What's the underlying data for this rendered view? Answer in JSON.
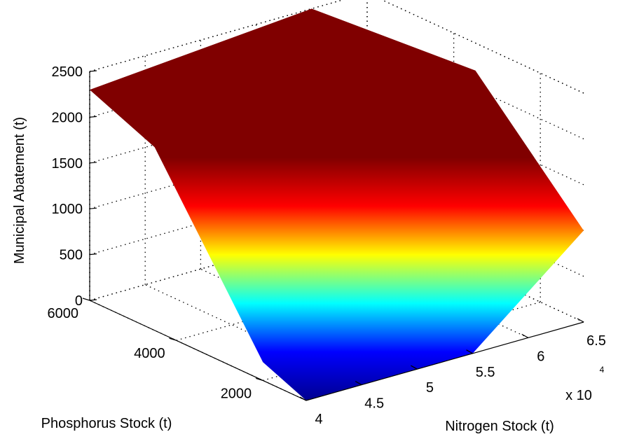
{
  "chart_data": {
    "type": "surface",
    "title": "",
    "xlabel": "Nitrogen Stock (t)",
    "ylabel": "Phosphorus Stock (t)",
    "zlabel": "Municipal Abatement (t)",
    "x_multiplier_label": "x 10",
    "x_multiplier_exponent": "4",
    "x_ticks": [
      "4",
      "4.5",
      "5",
      "5.5",
      "6",
      "6.5"
    ],
    "y_ticks": [
      "2000",
      "4000",
      "6000"
    ],
    "z_ticks": [
      "0",
      "500",
      "1000",
      "1500",
      "2000",
      "2500"
    ],
    "xlim": [
      40000,
      65000
    ],
    "ylim": [
      1000,
      6000
    ],
    "zlim": [
      0,
      2500
    ],
    "grid": true,
    "colormap": "jet",
    "colormap_stops": [
      "#00008f",
      "#0000ff",
      "#00ffff",
      "#ffff00",
      "#ff0000",
      "#800000"
    ],
    "surface_vertices": [
      {
        "name": "x-low-y-high-top",
        "x": 40000,
        "y": 6000,
        "z": 2300
      },
      {
        "name": "x-high-y-high-top",
        "x": 60000,
        "y": 6000,
        "z": 2500
      },
      {
        "name": "x-high-y-mid-top",
        "x": 65000,
        "y": 3500,
        "z": 2200
      },
      {
        "name": "x-high-y-low-mid",
        "x": 65000,
        "y": 1000,
        "z": 1000
      },
      {
        "name": "x-mid-y-low-bottom",
        "x": 55000,
        "y": 1000,
        "z": 0
      },
      {
        "name": "x-low-y-low-bottom",
        "x": 40000,
        "y": 1000,
        "z": 0
      },
      {
        "name": "x-low-y-mid-bottom",
        "x": 40000,
        "y": 2000,
        "z": 200
      },
      {
        "name": "x-low-y-mid-top",
        "x": 40000,
        "y": 4500,
        "z": 2000
      }
    ]
  }
}
